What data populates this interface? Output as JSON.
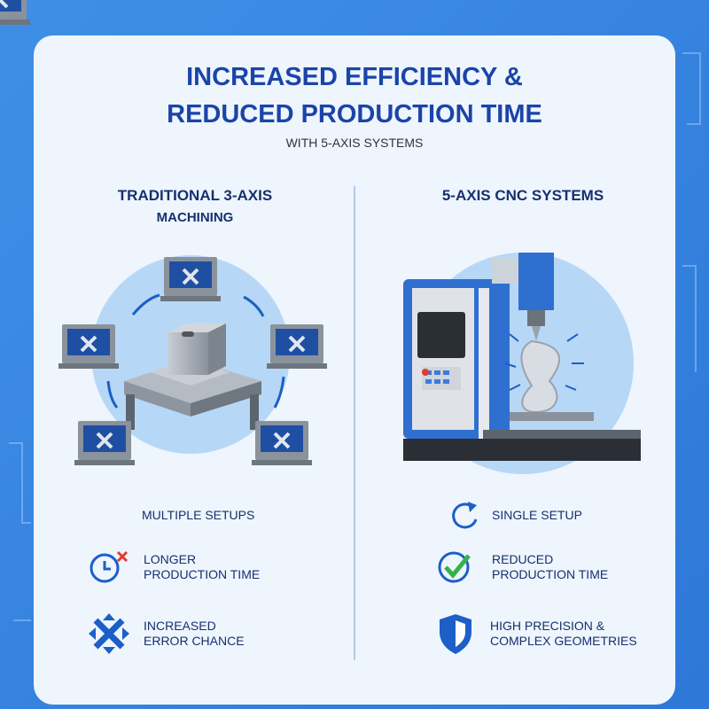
{
  "title": {
    "lines": [
      "INCREASED EFFICIENCY &",
      "REDUCED PRODUCTION TIME"
    ],
    "subtitle": "WITH 5-AXIS SYSTEMS"
  },
  "left": {
    "heading": [
      "TRADITIONAL 3-AXIS",
      "MACHINING"
    ],
    "features": [
      {
        "lines": [
          "MULTIPLE SETUPS"
        ]
      },
      {
        "lines": [
          "LONGER",
          "PRODUCTION TIME"
        ]
      },
      {
        "lines": [
          "INCREASED",
          "ERROR CHANCE"
        ]
      }
    ]
  },
  "right": {
    "heading": [
      "5-AXIS CNC SYSTEMS"
    ],
    "features": [
      {
        "lines": [
          "SINGLE SETUP"
        ]
      },
      {
        "lines": [
          "REDUCED",
          "PRODUCTION TIME"
        ]
      },
      {
        "lines": [
          "HIGH PRECISION &",
          "COMPLEX GEOMETRIES"
        ]
      }
    ]
  }
}
